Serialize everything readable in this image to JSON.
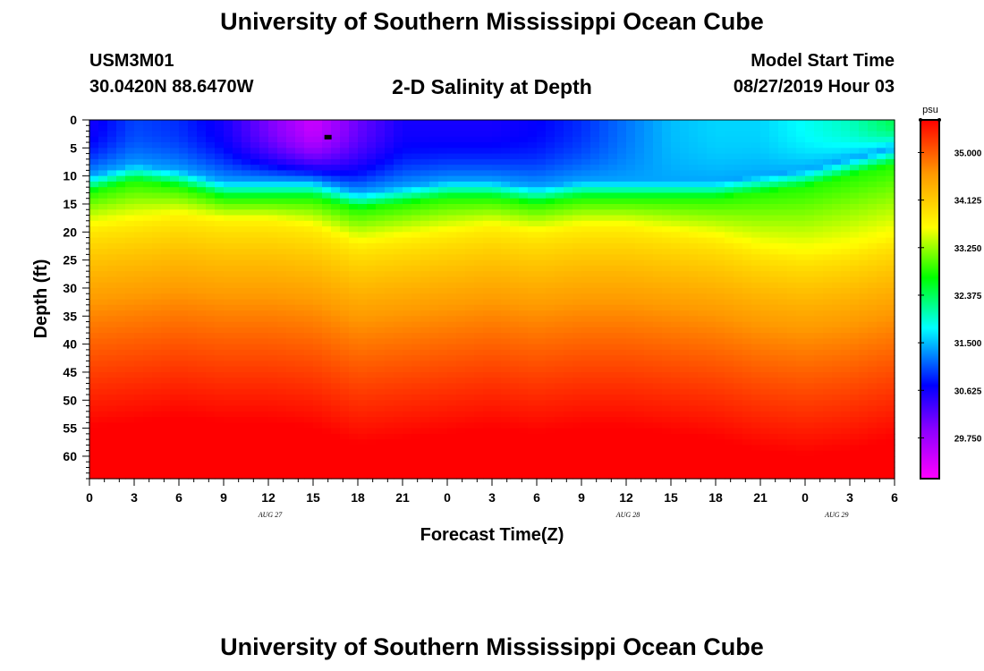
{
  "header": {
    "top_title": "University of Southern Mississippi Ocean Cube",
    "bottom_title": "University of Southern Mississippi Ocean Cube",
    "station_id": "USM3M01",
    "station_coords": "30.0420N 88.6470W",
    "plot_title": "2-D Salinity at Depth",
    "start_label": "Model Start Time",
    "start_value": "08/27/2019 Hour 03"
  },
  "colors": {
    "magenta": "#ff00ff",
    "blue": "#0000ff",
    "cyan": "#00ffff",
    "green": "#00ff00",
    "yellow": "#ffff00",
    "orange": "#ff9900",
    "red": "#ff0000",
    "marker": "#000000"
  },
  "chart_data": {
    "type": "heatmap",
    "title": "2-D Salinity at Depth",
    "xlabel": "Forecast Time(Z)",
    "ylabel": "Depth (ft)",
    "x_ticks": [
      "0",
      "3",
      "6",
      "9",
      "12",
      "15",
      "18",
      "21",
      "0",
      "3",
      "6",
      "9",
      "12",
      "15",
      "18",
      "21",
      "0",
      "3",
      "6"
    ],
    "x_range_hours": [
      0,
      54
    ],
    "date_labels": [
      {
        "text": "AUG 27",
        "hour": 12
      },
      {
        "text": "AUG 28",
        "hour": 36
      },
      {
        "text": "AUG 29",
        "hour": 50
      }
    ],
    "y_ticks": [
      "0",
      "5",
      "10",
      "15",
      "20",
      "25",
      "30",
      "35",
      "40",
      "45",
      "50",
      "55",
      "60"
    ],
    "y_range_ft": [
      0,
      64
    ],
    "colorbar": {
      "unit": "psu",
      "range": [
        29.0,
        35.6
      ],
      "ticks": [
        "35.000",
        "34.125",
        "33.250",
        "32.375",
        "31.500",
        "30.625",
        "29.750"
      ],
      "tick_values": [
        35.0,
        34.125,
        33.25,
        32.375,
        31.5,
        30.625,
        29.75
      ]
    },
    "marker": {
      "hour": 16,
      "depth_ft": 3
    },
    "fresh_layer_depth_ft": [
      [
        0,
        10
      ],
      [
        3,
        8
      ],
      [
        6,
        9
      ],
      [
        9,
        11
      ],
      [
        12,
        11
      ],
      [
        15,
        11
      ],
      [
        18,
        13
      ],
      [
        21,
        12
      ],
      [
        24,
        11
      ],
      [
        27,
        11
      ],
      [
        30,
        12
      ],
      [
        33,
        11
      ],
      [
        36,
        11
      ],
      [
        39,
        11
      ],
      [
        42,
        11
      ],
      [
        45,
        10
      ],
      [
        48,
        9
      ],
      [
        51,
        7
      ],
      [
        54,
        5
      ]
    ],
    "surface_salinity_psu": [
      [
        0,
        30.6
      ],
      [
        3,
        31.0
      ],
      [
        6,
        30.9
      ],
      [
        9,
        30.6
      ],
      [
        12,
        30.0
      ],
      [
        15,
        29.4
      ],
      [
        18,
        30.1
      ],
      [
        21,
        30.6
      ],
      [
        24,
        30.6
      ],
      [
        27,
        30.6
      ],
      [
        30,
        30.7
      ],
      [
        33,
        30.9
      ],
      [
        36,
        31.2
      ],
      [
        39,
        31.5
      ],
      [
        42,
        31.6
      ],
      [
        45,
        31.6
      ],
      [
        48,
        31.8
      ],
      [
        51,
        32.0
      ],
      [
        54,
        32.4
      ]
    ],
    "green_layer_bottom_ft": [
      [
        0,
        19
      ],
      [
        3,
        18
      ],
      [
        6,
        17
      ],
      [
        9,
        18
      ],
      [
        12,
        18
      ],
      [
        15,
        19
      ],
      [
        18,
        22
      ],
      [
        21,
        21
      ],
      [
        24,
        20
      ],
      [
        27,
        19
      ],
      [
        30,
        20
      ],
      [
        33,
        19
      ],
      [
        36,
        19
      ],
      [
        39,
        20
      ],
      [
        42,
        21
      ],
      [
        45,
        23
      ],
      [
        48,
        24
      ],
      [
        51,
        23
      ],
      [
        54,
        21
      ]
    ],
    "deep_salinity_psu": 35.6
  }
}
